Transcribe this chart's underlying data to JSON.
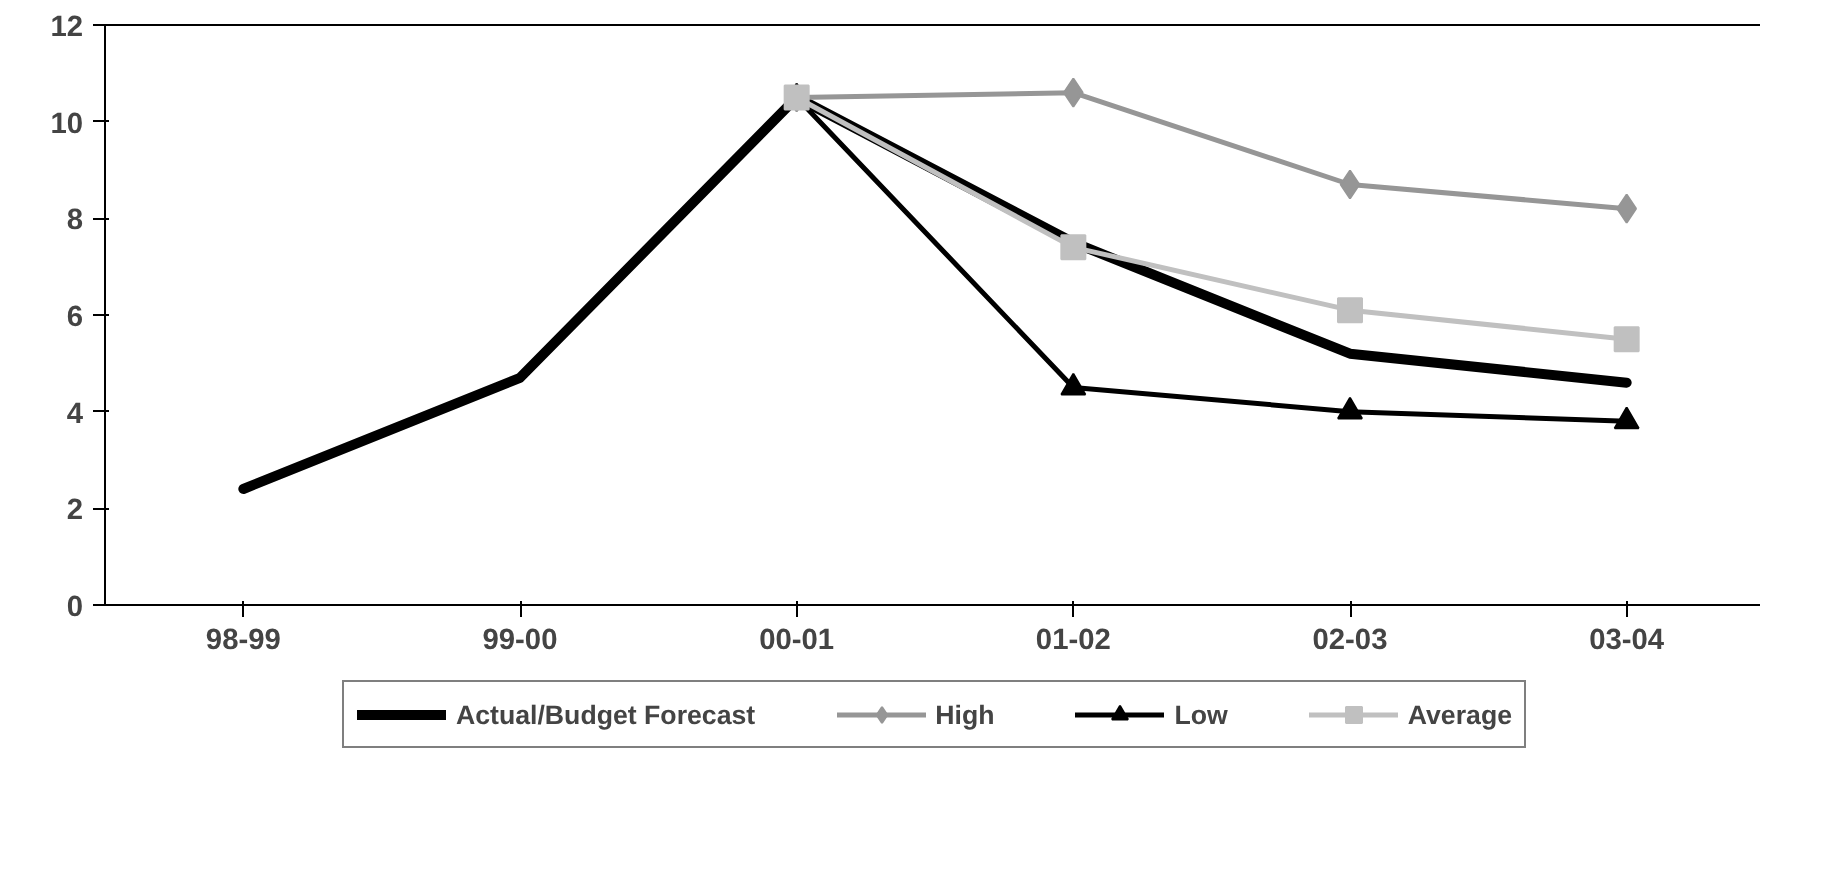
{
  "chart_data": {
    "type": "line",
    "categories": [
      "98-99",
      "99-00",
      "00-01",
      "01-02",
      "02-03",
      "03-04"
    ],
    "ylim": [
      0,
      12
    ],
    "yticks": [
      0,
      2,
      4,
      6,
      8,
      10,
      12
    ],
    "grid": false,
    "legend": "bottom",
    "line_style": "solid",
    "series": [
      {
        "name": "Actual/Budget Forecast",
        "color": "#000000",
        "marker": "none",
        "values": [
          2.4,
          4.7,
          10.5,
          7.5,
          5.2,
          4.6
        ]
      },
      {
        "name": "High",
        "color": "#969696",
        "marker": "diamond",
        "values": [
          null,
          null,
          10.5,
          10.6,
          8.7,
          8.2
        ]
      },
      {
        "name": "Low",
        "color": "#000000",
        "marker": "triangle",
        "values": [
          null,
          null,
          10.5,
          4.5,
          4.0,
          3.8
        ]
      },
      {
        "name": "Average",
        "color": "#c0c0c0",
        "marker": "square",
        "values": [
          null,
          null,
          10.5,
          7.4,
          6.1,
          5.5
        ]
      }
    ]
  }
}
